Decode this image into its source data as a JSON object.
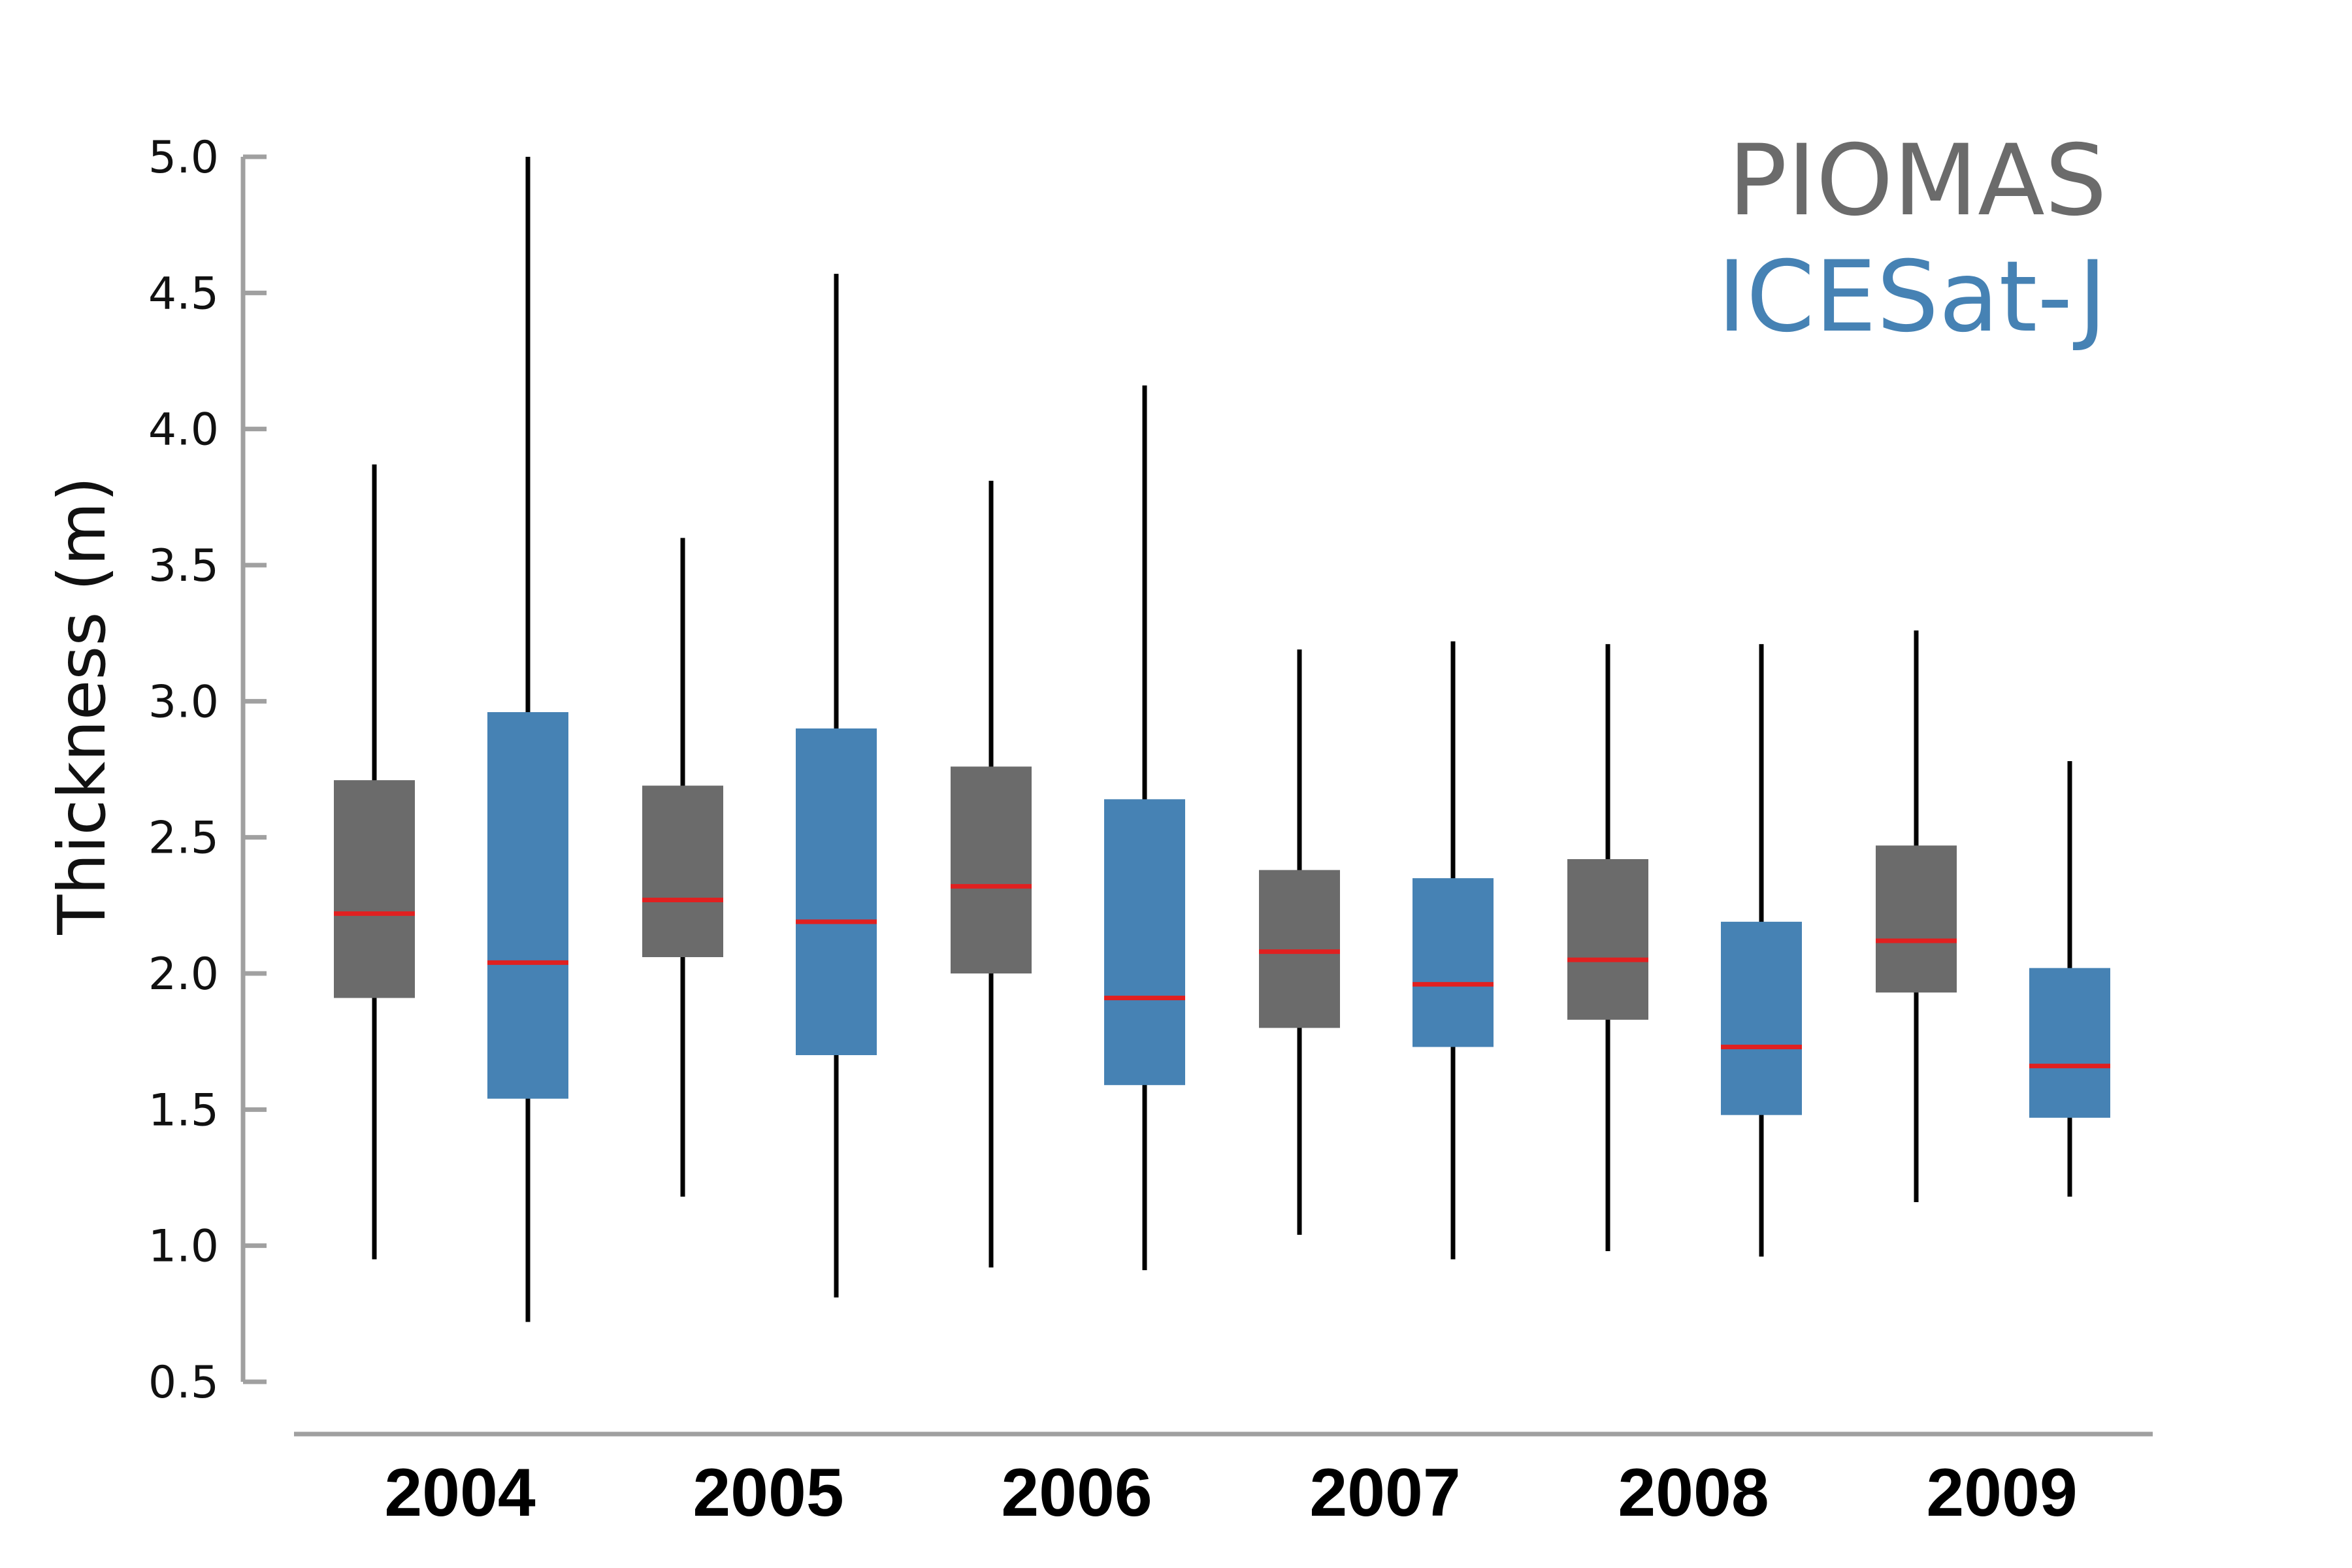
{
  "chart_data": {
    "type": "boxplot",
    "ylabel": "Thickness (m)",
    "xlabel": "",
    "ylim": [
      0.5,
      5.0
    ],
    "yticks": [
      "0.5",
      "1.0",
      "1.5",
      "2.0",
      "2.5",
      "3.0",
      "3.5",
      "4.0",
      "4.5",
      "5.0"
    ],
    "ytick_values": [
      0.5,
      1.0,
      1.5,
      2.0,
      2.5,
      3.0,
      3.5,
      4.0,
      4.5,
      5.0
    ],
    "categories": [
      "2004",
      "2005",
      "2006",
      "2007",
      "2008",
      "2009"
    ],
    "grid": false,
    "legend_position": "top-right",
    "series": [
      {
        "name": "PIOMAS",
        "color": "#6b6b6b",
        "boxes": [
          {
            "min": 0.95,
            "q1": 1.91,
            "median": 2.22,
            "q3": 2.71,
            "max": 3.87
          },
          {
            "min": 1.18,
            "q1": 2.06,
            "median": 2.27,
            "q3": 2.69,
            "max": 3.6
          },
          {
            "min": 0.92,
            "q1": 2.0,
            "median": 2.32,
            "q3": 2.76,
            "max": 3.81
          },
          {
            "min": 1.04,
            "q1": 1.8,
            "median": 2.08,
            "q3": 2.38,
            "max": 3.19
          },
          {
            "min": 0.98,
            "q1": 1.83,
            "median": 2.05,
            "q3": 2.42,
            "max": 3.21
          },
          {
            "min": 1.16,
            "q1": 1.93,
            "median": 2.12,
            "q3": 2.47,
            "max": 3.26
          }
        ]
      },
      {
        "name": "ICESat-J",
        "color": "#4682b4",
        "boxes": [
          {
            "min": 0.72,
            "q1": 1.54,
            "median": 2.04,
            "q3": 2.96,
            "max": 5.0
          },
          {
            "min": 0.81,
            "q1": 1.7,
            "median": 2.19,
            "q3": 2.9,
            "max": 4.57
          },
          {
            "min": 0.91,
            "q1": 1.59,
            "median": 1.91,
            "q3": 2.64,
            "max": 4.16
          },
          {
            "min": 0.95,
            "q1": 1.73,
            "median": 1.96,
            "q3": 2.35,
            "max": 3.22
          },
          {
            "min": 0.96,
            "q1": 1.48,
            "median": 1.73,
            "q3": 2.19,
            "max": 3.21
          },
          {
            "min": 1.18,
            "q1": 1.47,
            "median": 1.66,
            "q3": 2.02,
            "max": 2.78
          }
        ]
      }
    ],
    "median_color": "#e02020",
    "whisker_color": "#000000",
    "axis_color": "#a0a0a0"
  }
}
